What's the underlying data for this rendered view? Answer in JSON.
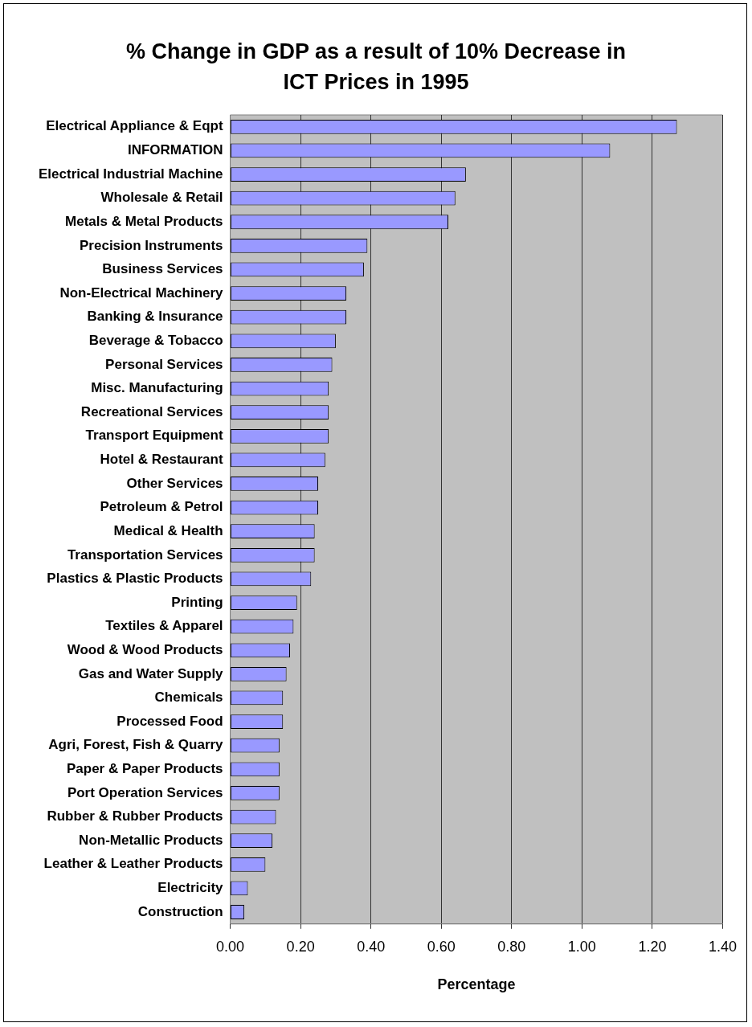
{
  "chart_data": {
    "type": "bar",
    "orientation": "horizontal",
    "title": "% Change in GDP as a result of 10% Decrease in ICT Prices in 1995",
    "xlabel": "Percentage",
    "categories": [
      "Electrical Appliance & Eqpt",
      "INFORMATION",
      "Electrical Industrial Machine",
      "Wholesale & Retail",
      "Metals & Metal Products",
      "Precision Instruments",
      "Business Services",
      "Non-Electrical Machinery",
      "Banking & Insurance",
      "Beverage & Tobacco",
      "Personal Services",
      "Misc. Manufacturing",
      "Recreational Services",
      "Transport Equipment",
      "Hotel & Restaurant",
      "Other Services",
      "Petroleum & Petrol",
      "Medical & Health",
      "Transportation Services",
      "Plastics & Plastic Products",
      "Printing",
      "Textiles & Apparel",
      "Wood & Wood Products",
      "Gas and Water Supply",
      "Chemicals",
      "Processed Food",
      "Agri, Forest, Fish & Quarry",
      "Paper & Paper Products",
      "Port Operation Services",
      "Rubber & Rubber Products",
      "Non-Metallic Products",
      "Leather & Leather Products",
      "Electricity",
      "Construction"
    ],
    "values": [
      1.27,
      1.08,
      0.67,
      0.64,
      0.62,
      0.39,
      0.38,
      0.33,
      0.33,
      0.3,
      0.29,
      0.28,
      0.28,
      0.28,
      0.27,
      0.25,
      0.25,
      0.24,
      0.24,
      0.23,
      0.19,
      0.18,
      0.17,
      0.16,
      0.15,
      0.15,
      0.14,
      0.14,
      0.14,
      0.13,
      0.12,
      0.1,
      0.05,
      0.04
    ],
    "color": "#9999ff",
    "xlim": [
      0,
      1.4
    ],
    "xticks": [
      {
        "value": 0,
        "label": "0.00"
      },
      {
        "value": 0.2,
        "label": "0.20"
      },
      {
        "value": 0.4,
        "label": "0.40"
      },
      {
        "value": 0.6,
        "label": "0.60"
      },
      {
        "value": 0.8,
        "label": "0.80"
      },
      {
        "value": 1,
        "label": "1.00"
      },
      {
        "value": 1.2,
        "label": "1.20"
      },
      {
        "value": 1.4,
        "label": "1.40"
      }
    ],
    "grid": "x",
    "legend": false
  }
}
